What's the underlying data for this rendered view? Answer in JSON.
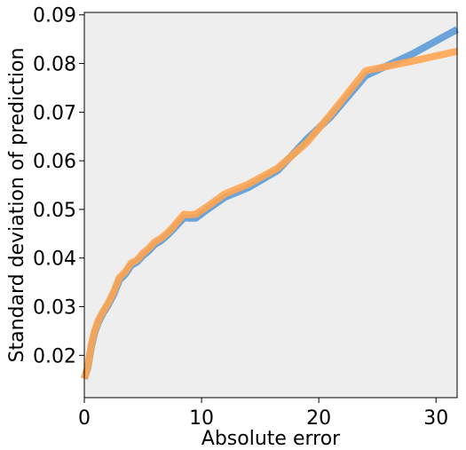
{
  "chart_data": {
    "type": "line",
    "title": "",
    "xlabel": "Absolute error",
    "ylabel": "Standard deviation of prediction",
    "xlim": [
      0,
      31.8
    ],
    "ylim": [
      0.0113,
      0.0905
    ],
    "xticks": [
      0,
      10,
      20,
      30
    ],
    "xtick_labels": [
      "0",
      "10",
      "20",
      "30"
    ],
    "yticks": [
      0.02,
      0.03,
      0.04,
      0.05,
      0.06,
      0.07,
      0.08,
      0.09
    ],
    "ytick_labels": [
      "0.02",
      "0.03",
      "0.04",
      "0.05",
      "0.06",
      "0.07",
      "0.08",
      "0.09"
    ],
    "grid": false,
    "legend": "none",
    "plot_background": "#eeeeee",
    "series": [
      {
        "color": "#5b9bd5",
        "x": [
          0.0,
          0.3,
          0.6,
          0.9,
          1.2,
          1.6,
          2.0,
          2.5,
          3.0,
          3.5,
          4.0,
          4.5,
          5.0,
          5.5,
          6.0,
          6.5,
          7.0,
          7.5,
          8.0,
          8.5,
          9.0,
          9.5,
          10.5,
          12.0,
          14.0,
          16.5,
          19.0,
          21.0,
          24.0,
          28.0,
          31.8
        ],
        "y": [
          0.0152,
          0.0175,
          0.0218,
          0.0248,
          0.0268,
          0.0287,
          0.0302,
          0.0325,
          0.0355,
          0.0367,
          0.0385,
          0.0392,
          0.0405,
          0.0415,
          0.0428,
          0.0435,
          0.0445,
          0.0457,
          0.047,
          0.0483,
          0.0482,
          0.0482,
          0.05,
          0.0525,
          0.0545,
          0.058,
          0.0645,
          0.069,
          0.0775,
          0.082,
          0.087
        ]
      },
      {
        "color": "#ffa552",
        "x": [
          0.0,
          0.3,
          0.6,
          0.9,
          1.2,
          1.6,
          2.0,
          2.5,
          3.0,
          3.5,
          4.0,
          4.5,
          5.0,
          5.5,
          6.0,
          6.5,
          7.0,
          7.5,
          8.0,
          8.5,
          9.0,
          9.5,
          10.5,
          12.0,
          14.0,
          16.5,
          19.0,
          21.0,
          24.0,
          28.0,
          31.8
        ],
        "y": [
          0.0152,
          0.0178,
          0.0222,
          0.0252,
          0.0272,
          0.029,
          0.0306,
          0.033,
          0.036,
          0.0372,
          0.039,
          0.0396,
          0.041,
          0.042,
          0.0433,
          0.044,
          0.045,
          0.0462,
          0.0476,
          0.049,
          0.0489,
          0.049,
          0.0506,
          0.0532,
          0.0552,
          0.0585,
          0.0638,
          0.0695,
          0.0785,
          0.0805,
          0.0825
        ]
      }
    ]
  }
}
